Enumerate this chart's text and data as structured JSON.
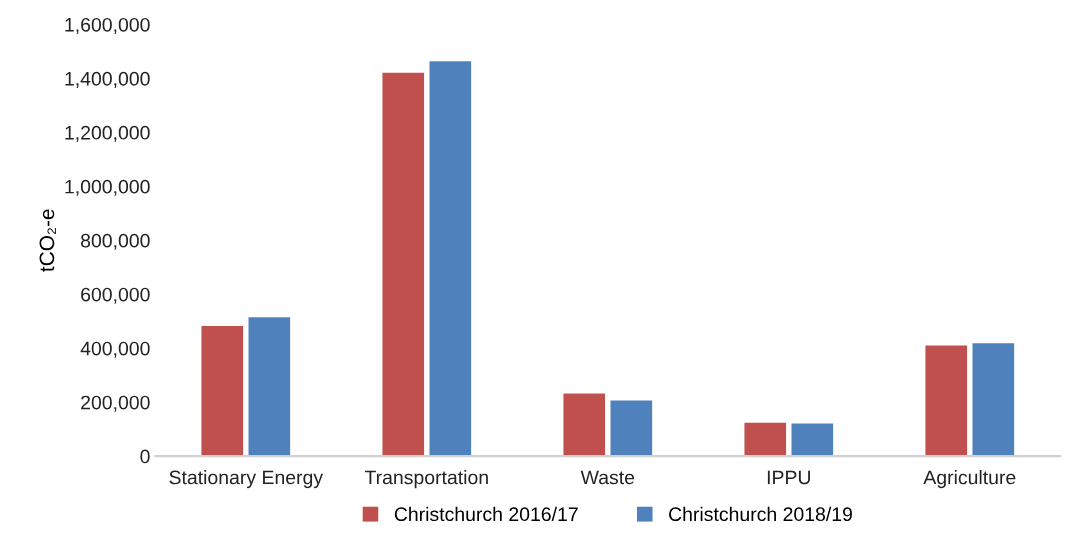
{
  "chart_data": {
    "type": "bar",
    "ylabel": "tCO₂-e",
    "categories": [
      "Stationary Energy",
      "Transportation",
      "Waste",
      "IPPU",
      "Agriculture"
    ],
    "series": [
      {
        "name": "Christchurch 2016/17",
        "color": "#c0504d",
        "values": [
          482000,
          1421000,
          232000,
          124000,
          410000
        ]
      },
      {
        "name": "Christchurch 2018/19",
        "color": "#4f81bd",
        "values": [
          515000,
          1464000,
          206000,
          121000,
          418000
        ]
      }
    ],
    "ylim": [
      0,
      1600000
    ],
    "yticks": [
      {
        "value": 0,
        "label": "0"
      },
      {
        "value": 200000,
        "label": "200,000"
      },
      {
        "value": 400000,
        "label": "400,000"
      },
      {
        "value": 600000,
        "label": "600,000"
      },
      {
        "value": 800000,
        "label": "800,000"
      },
      {
        "value": 1000000,
        "label": "1,000,000"
      },
      {
        "value": 1200000,
        "label": "1,200,000"
      },
      {
        "value": 1400000,
        "label": "1,400,000"
      },
      {
        "value": 1600000,
        "label": "1,600,000"
      }
    ],
    "grid": false,
    "legend": "bottom"
  }
}
